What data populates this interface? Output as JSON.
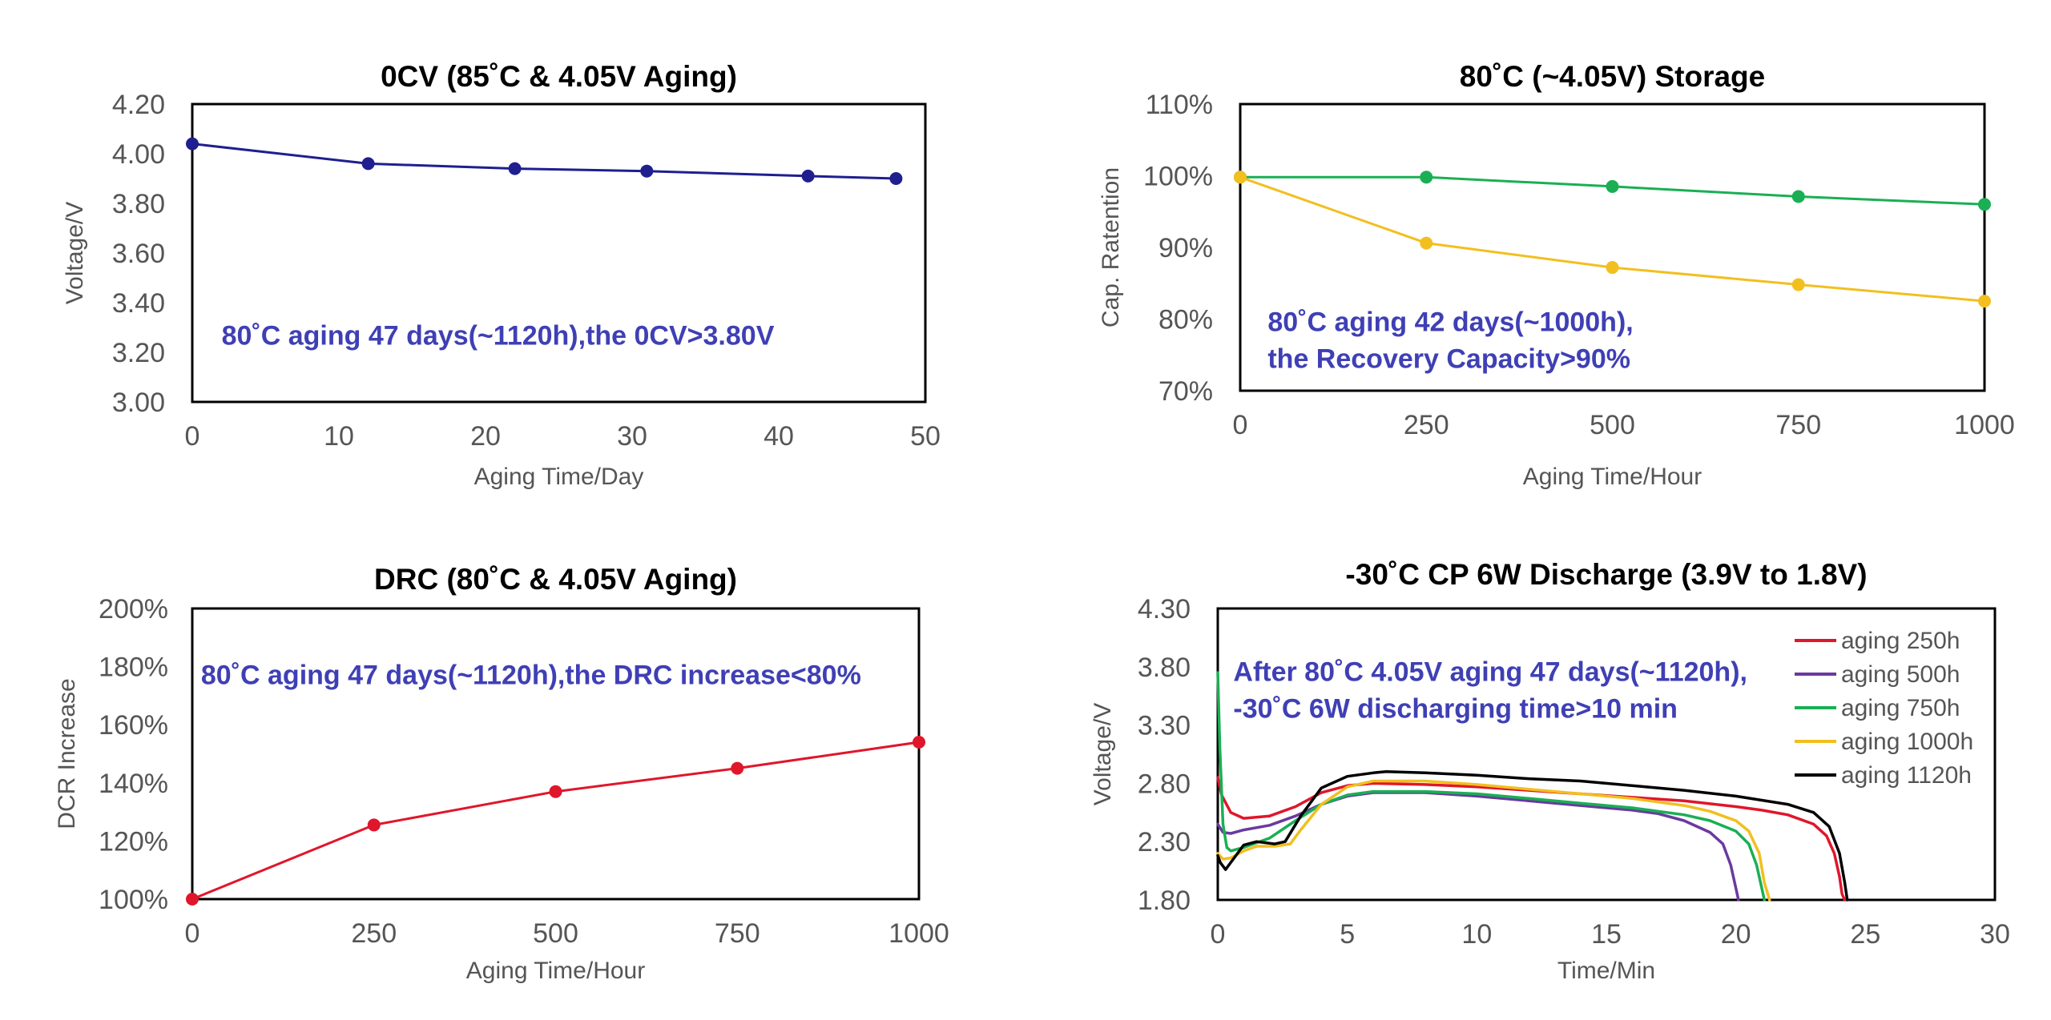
{
  "colors": {
    "annotation": "#3f3fb5",
    "frame": "#000000",
    "tick": "#555555"
  },
  "chart_data": [
    {
      "id": "ocv",
      "type": "line",
      "title": "0CV (85˚C & 4.05V Aging)",
      "xlabel": "Aging Time/Day",
      "ylabel": "Voltage/V",
      "xlim": [
        0,
        50
      ],
      "ylim": [
        3.0,
        4.2
      ],
      "xticks": [
        0,
        10,
        20,
        30,
        40,
        50
      ],
      "xtick_labels": [
        "0",
        "10",
        "20",
        "30",
        "40",
        "50"
      ],
      "yticks": [
        3.0,
        3.2,
        3.4,
        3.6,
        3.8,
        4.0,
        4.2
      ],
      "ytick_labels": [
        "3.00",
        "3.20",
        "3.40",
        "3.60",
        "3.80",
        "4.00",
        "4.20"
      ],
      "series": [
        {
          "name": "OCV",
          "color": "#1f1f8f",
          "markers": true,
          "x": [
            0,
            12,
            22,
            31,
            42,
            48
          ],
          "y": [
            4.04,
            3.96,
            3.94,
            3.93,
            3.91,
            3.9
          ]
        }
      ],
      "annotations": [
        {
          "lines": [
            "80˚C aging 47 days(~1120h),the 0CV>3.80V"
          ],
          "at": [
            2,
            3.23
          ]
        }
      ],
      "legend": null
    },
    {
      "id": "storage",
      "type": "line",
      "title": "80˚C (~4.05V) Storage",
      "xlabel": "Aging Time/Hour",
      "ylabel": "Cap. Ratention",
      "xlim": [
        0,
        1000
      ],
      "ylim": [
        70,
        110
      ],
      "xticks": [
        0,
        250,
        500,
        750,
        1000
      ],
      "xtick_labels": [
        "0",
        "250",
        "500",
        "750",
        "1000"
      ],
      "yticks": [
        70,
        80,
        90,
        100,
        110
      ],
      "ytick_labels": [
        "70%",
        "80%",
        "90%",
        "100%",
        "110%"
      ],
      "series": [
        {
          "name": "Retention",
          "color": "#1aaf54",
          "markers": true,
          "x": [
            0,
            250,
            500,
            750,
            1000
          ],
          "y": [
            99.8,
            99.8,
            98.5,
            97.1,
            96.0
          ]
        },
        {
          "name": "Recovery",
          "color": "#f2bf1f",
          "markers": true,
          "x": [
            0,
            250,
            500,
            750,
            1000
          ],
          "y": [
            99.8,
            90.6,
            87.2,
            84.8,
            82.5
          ]
        }
      ],
      "annotations": [
        {
          "lines": [
            "80˚C aging 42 days(~1000h),",
            "the Recovery Capacity>90%"
          ],
          "at": [
            37,
            78.3
          ]
        }
      ],
      "legend": null
    },
    {
      "id": "drc",
      "type": "line",
      "title": "DRC (80˚C & 4.05V Aging)",
      "xlabel": "Aging Time/Hour",
      "ylabel": "DCR Increase",
      "xlim": [
        0,
        1000
      ],
      "ylim": [
        100,
        200
      ],
      "xticks": [
        0,
        250,
        500,
        750,
        1000
      ],
      "xtick_labels": [
        "0",
        "250",
        "500",
        "750",
        "1000"
      ],
      "yticks": [
        100,
        120,
        140,
        160,
        180,
        200
      ],
      "ytick_labels": [
        "100%",
        "120%",
        "140%",
        "160%",
        "180%",
        "200%"
      ],
      "series": [
        {
          "name": "DCR",
          "color": "#e0162b",
          "markers": true,
          "x": [
            0,
            250,
            500,
            750,
            1000
          ],
          "y": [
            100,
            125.5,
            137,
            145,
            154
          ]
        }
      ],
      "annotations": [
        {
          "lines": [
            "80˚C aging 47 days(~1120h),the DRC increase<80%"
          ],
          "at": [
            12,
            174
          ]
        }
      ],
      "legend": null
    },
    {
      "id": "discharge",
      "type": "line",
      "title": "-30˚C CP 6W Discharge (3.9V to 1.8V)",
      "xlabel": "Time/Min",
      "ylabel": "Voltage/V",
      "xlim": [
        0,
        30
      ],
      "ylim": [
        1.8,
        4.3
      ],
      "xticks": [
        0,
        5,
        10,
        15,
        20,
        25,
        30
      ],
      "xtick_labels": [
        "0",
        "5",
        "10",
        "15",
        "20",
        "25",
        "30"
      ],
      "yticks": [
        1.8,
        2.3,
        2.8,
        3.3,
        3.8,
        4.3
      ],
      "ytick_labels": [
        "1.80",
        "2.30",
        "2.80",
        "3.30",
        "3.80",
        "4.30"
      ],
      "series": [
        {
          "name": "aging 250h",
          "color": "#e0162b",
          "markers": false,
          "x": [
            0,
            0.15,
            0.5,
            1,
            2,
            3,
            4,
            5,
            6,
            8,
            10,
            12,
            14,
            16,
            18,
            20,
            21,
            22,
            23,
            23.5,
            23.8,
            24.0,
            24.1,
            24.2
          ],
          "y": [
            2.85,
            2.7,
            2.55,
            2.5,
            2.52,
            2.6,
            2.72,
            2.78,
            2.8,
            2.79,
            2.77,
            2.74,
            2.71,
            2.68,
            2.65,
            2.6,
            2.57,
            2.53,
            2.45,
            2.35,
            2.2,
            2.0,
            1.85,
            1.8
          ]
        },
        {
          "name": "aging 500h",
          "color": "#6a3a9e",
          "markers": false,
          "x": [
            0,
            0.2,
            0.5,
            1,
            2,
            3,
            4,
            5,
            6,
            8,
            10,
            12,
            14,
            16,
            17,
            18,
            19,
            19.5,
            19.8,
            20.0,
            20.1
          ],
          "y": [
            2.45,
            2.38,
            2.37,
            2.4,
            2.44,
            2.52,
            2.62,
            2.69,
            2.72,
            2.72,
            2.69,
            2.65,
            2.61,
            2.57,
            2.54,
            2.48,
            2.38,
            2.28,
            2.1,
            1.9,
            1.8
          ]
        },
        {
          "name": "aging 750h",
          "color": "#1aaf54",
          "markers": false,
          "x": [
            0,
            0.08,
            0.2,
            0.35,
            0.5,
            1,
            2,
            3,
            4,
            5,
            6,
            8,
            10,
            12,
            14,
            16,
            18,
            19,
            20,
            20.5,
            20.8,
            21.0,
            21.1
          ],
          "y": [
            3.75,
            3.1,
            2.45,
            2.25,
            2.22,
            2.25,
            2.33,
            2.48,
            2.62,
            2.7,
            2.73,
            2.73,
            2.71,
            2.67,
            2.63,
            2.59,
            2.53,
            2.48,
            2.39,
            2.28,
            2.1,
            1.9,
            1.8
          ]
        },
        {
          "name": "aging 1000h",
          "color": "#f2bf1f",
          "markers": false,
          "x": [
            0,
            0.2,
            0.5,
            1,
            1.5,
            2.2,
            2.8,
            3.2,
            4,
            5,
            6,
            8,
            10,
            12,
            14,
            16,
            18,
            19,
            20,
            20.5,
            20.9,
            21.1,
            21.3
          ],
          "y": [
            2.2,
            2.15,
            2.16,
            2.22,
            2.26,
            2.26,
            2.28,
            2.4,
            2.62,
            2.77,
            2.82,
            2.82,
            2.79,
            2.75,
            2.71,
            2.67,
            2.61,
            2.56,
            2.48,
            2.39,
            2.2,
            1.95,
            1.8
          ]
        },
        {
          "name": "aging 1120h",
          "color": "#000000",
          "markers": false,
          "x": [
            0,
            0.1,
            0.3,
            0.6,
            1,
            1.5,
            2.2,
            2.6,
            3.2,
            4,
            5,
            6,
            6.5,
            8,
            10,
            12,
            14,
            16,
            18,
            20,
            22,
            23,
            23.6,
            24.0,
            24.2,
            24.3
          ],
          "y": [
            2.18,
            2.12,
            2.06,
            2.15,
            2.27,
            2.3,
            2.28,
            2.3,
            2.52,
            2.76,
            2.86,
            2.89,
            2.9,
            2.89,
            2.87,
            2.84,
            2.82,
            2.78,
            2.74,
            2.69,
            2.62,
            2.55,
            2.43,
            2.2,
            1.95,
            1.8
          ]
        }
      ],
      "annotations": [
        {
          "lines": [
            "After 80˚C 4.05V aging 47 days(~1120h),",
            "-30˚C 6W discharging time>10 min"
          ],
          "at": [
            0.6,
            3.68
          ]
        }
      ],
      "legend": {
        "position": "top-right"
      }
    }
  ]
}
